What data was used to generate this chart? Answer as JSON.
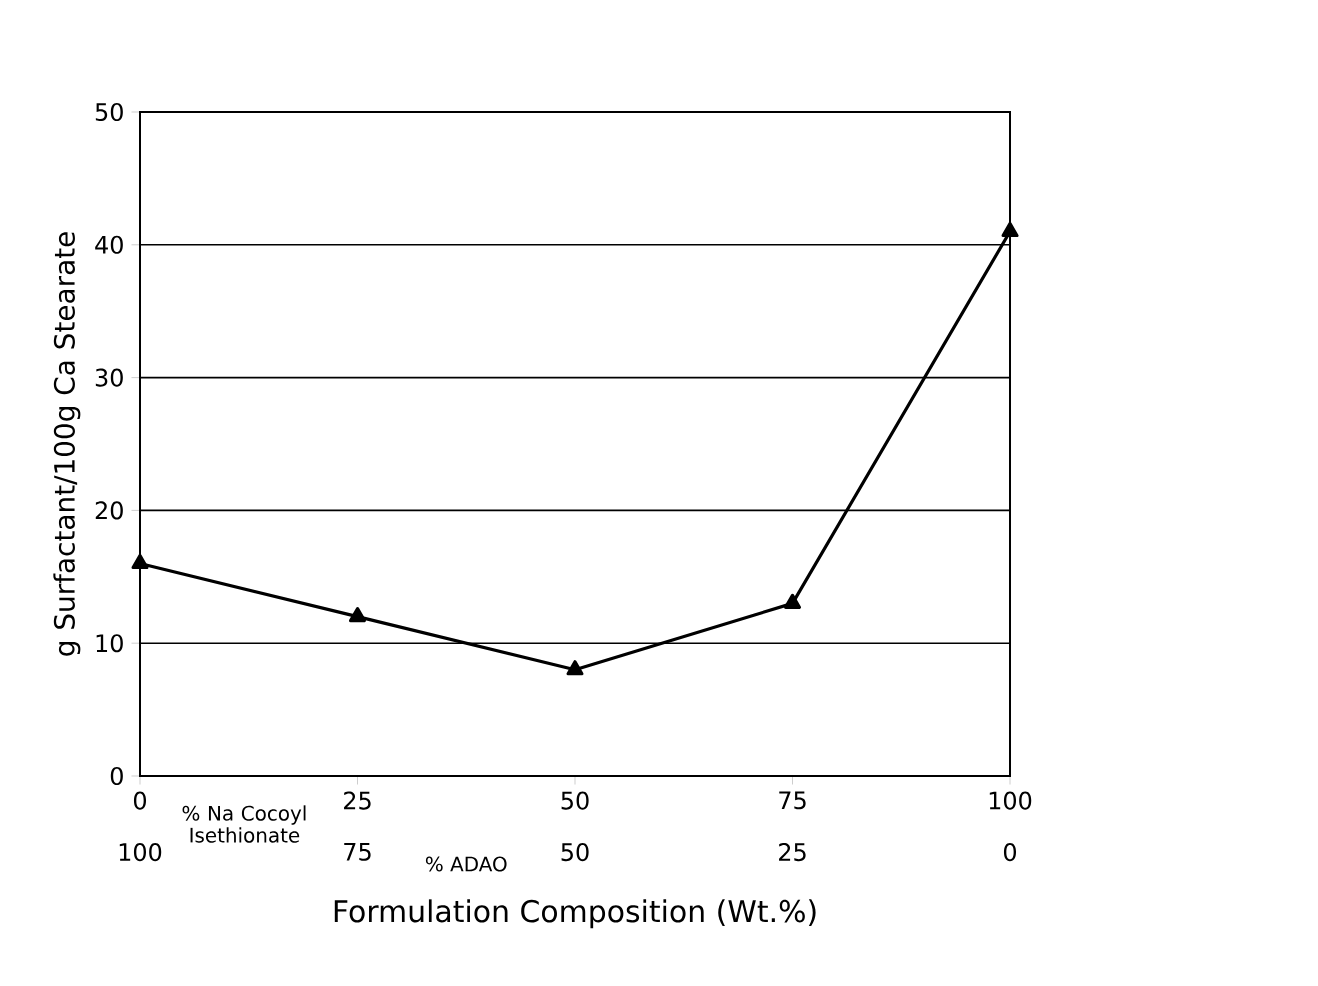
{
  "chart_data": {
    "type": "line",
    "xlabel": "Formulation Composition (Wt.%)",
    "ylabel": "g Surfactant/100g Ca Stearate",
    "x": [
      0,
      25,
      50,
      75,
      100
    ],
    "series": [
      {
        "color": "#000000",
        "values": [
          16,
          12,
          8,
          13,
          41
        ]
      }
    ],
    "xlim": [
      0,
      100
    ],
    "xticks": [
      0,
      25,
      50,
      75,
      100
    ],
    "x2lim": [
      100,
      0
    ],
    "x2ticks": [
      100,
      75,
      50,
      25,
      0
    ],
    "ylim": [
      0,
      50
    ],
    "yticks": [
      0,
      10,
      20,
      30,
      40,
      50
    ],
    "grid": "y",
    "marker": "triangle",
    "line_style": "solid",
    "annotations": [
      "% Na Cocoyl Isethionate",
      "% ADAO"
    ]
  }
}
